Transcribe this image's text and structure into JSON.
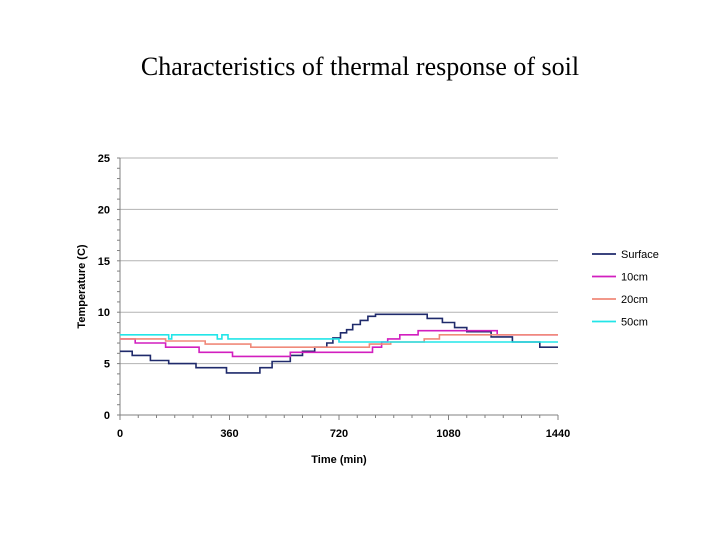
{
  "slide": {
    "title": "Characteristics of thermal response of soil"
  },
  "chart_data": {
    "type": "line",
    "title": "",
    "xlabel": "Time (min)",
    "ylabel": "Temperature (C)",
    "xlim": [
      0,
      1440
    ],
    "ylim": [
      0,
      25
    ],
    "x_ticks": [
      0,
      360,
      720,
      1080,
      1440
    ],
    "y_ticks": [
      0,
      5,
      10,
      15,
      20,
      25
    ],
    "grid": "horizontal",
    "legend_position": "right",
    "series": [
      {
        "name": "Surface",
        "color": "#1f2a6b",
        "points": [
          [
            0,
            6.2
          ],
          [
            40,
            6.2
          ],
          [
            40,
            5.8
          ],
          [
            100,
            5.8
          ],
          [
            100,
            5.3
          ],
          [
            160,
            5.3
          ],
          [
            160,
            5
          ],
          [
            250,
            5
          ],
          [
            250,
            4.6
          ],
          [
            350,
            4.6
          ],
          [
            350,
            4.1
          ],
          [
            460,
            4.1
          ],
          [
            460,
            4.6
          ],
          [
            500,
            4.6
          ],
          [
            500,
            5.2
          ],
          [
            560,
            5.2
          ],
          [
            560,
            5.8
          ],
          [
            600,
            5.8
          ],
          [
            600,
            6.2
          ],
          [
            640,
            6.2
          ],
          [
            640,
            6.6
          ],
          [
            680,
            6.6
          ],
          [
            680,
            7
          ],
          [
            700,
            7
          ],
          [
            700,
            7.5
          ],
          [
            725,
            7.5
          ],
          [
            725,
            8
          ],
          [
            745,
            8
          ],
          [
            745,
            8.3
          ],
          [
            765,
            8.3
          ],
          [
            765,
            8.8
          ],
          [
            790,
            8.8
          ],
          [
            790,
            9.2
          ],
          [
            815,
            9.2
          ],
          [
            815,
            9.6
          ],
          [
            840,
            9.6
          ],
          [
            840,
            9.8
          ],
          [
            1010,
            9.8
          ],
          [
            1010,
            9.4
          ],
          [
            1060,
            9.4
          ],
          [
            1060,
            9
          ],
          [
            1100,
            9
          ],
          [
            1100,
            8.5
          ],
          [
            1140,
            8.5
          ],
          [
            1140,
            8.1
          ],
          [
            1220,
            8.1
          ],
          [
            1220,
            7.6
          ],
          [
            1290,
            7.6
          ],
          [
            1290,
            7.1
          ],
          [
            1380,
            7.1
          ],
          [
            1380,
            6.6
          ],
          [
            1440,
            6.6
          ]
        ]
      },
      {
        "name": "10cm",
        "color": "#d21fbf",
        "points": [
          [
            0,
            7.4
          ],
          [
            50,
            7.4
          ],
          [
            50,
            7
          ],
          [
            150,
            7
          ],
          [
            150,
            6.6
          ],
          [
            260,
            6.6
          ],
          [
            260,
            6.1
          ],
          [
            370,
            6.1
          ],
          [
            370,
            5.7
          ],
          [
            560,
            5.7
          ],
          [
            560,
            6.1
          ],
          [
            830,
            6.1
          ],
          [
            830,
            6.6
          ],
          [
            860,
            6.6
          ],
          [
            860,
            7.1
          ],
          [
            880,
            7.1
          ],
          [
            880,
            7.4
          ],
          [
            920,
            7.4
          ],
          [
            920,
            7.8
          ],
          [
            980,
            7.8
          ],
          [
            980,
            8.2
          ],
          [
            1240,
            8.2
          ],
          [
            1240,
            7.8
          ],
          [
            1440,
            7.8
          ]
        ]
      },
      {
        "name": "20cm",
        "color": "#f08a7a",
        "points": [
          [
            0,
            7.4
          ],
          [
            150,
            7.4
          ],
          [
            150,
            7.2
          ],
          [
            280,
            7.2
          ],
          [
            280,
            6.9
          ],
          [
            430,
            6.9
          ],
          [
            430,
            6.6
          ],
          [
            820,
            6.6
          ],
          [
            820,
            6.9
          ],
          [
            890,
            6.9
          ],
          [
            890,
            7.1
          ],
          [
            1000,
            7.1
          ],
          [
            1000,
            7.4
          ],
          [
            1050,
            7.4
          ],
          [
            1050,
            7.8
          ],
          [
            1440,
            7.8
          ]
        ]
      },
      {
        "name": "50cm",
        "color": "#22e5e8",
        "points": [
          [
            0,
            7.8
          ],
          [
            160,
            7.8
          ],
          [
            160,
            7.4
          ],
          [
            170,
            7.4
          ],
          [
            170,
            7.8
          ],
          [
            320,
            7.8
          ],
          [
            320,
            7.4
          ],
          [
            335,
            7.4
          ],
          [
            335,
            7.8
          ],
          [
            355,
            7.8
          ],
          [
            355,
            7.4
          ],
          [
            720,
            7.4
          ],
          [
            720,
            7.1
          ],
          [
            1440,
            7.1
          ]
        ]
      }
    ]
  }
}
